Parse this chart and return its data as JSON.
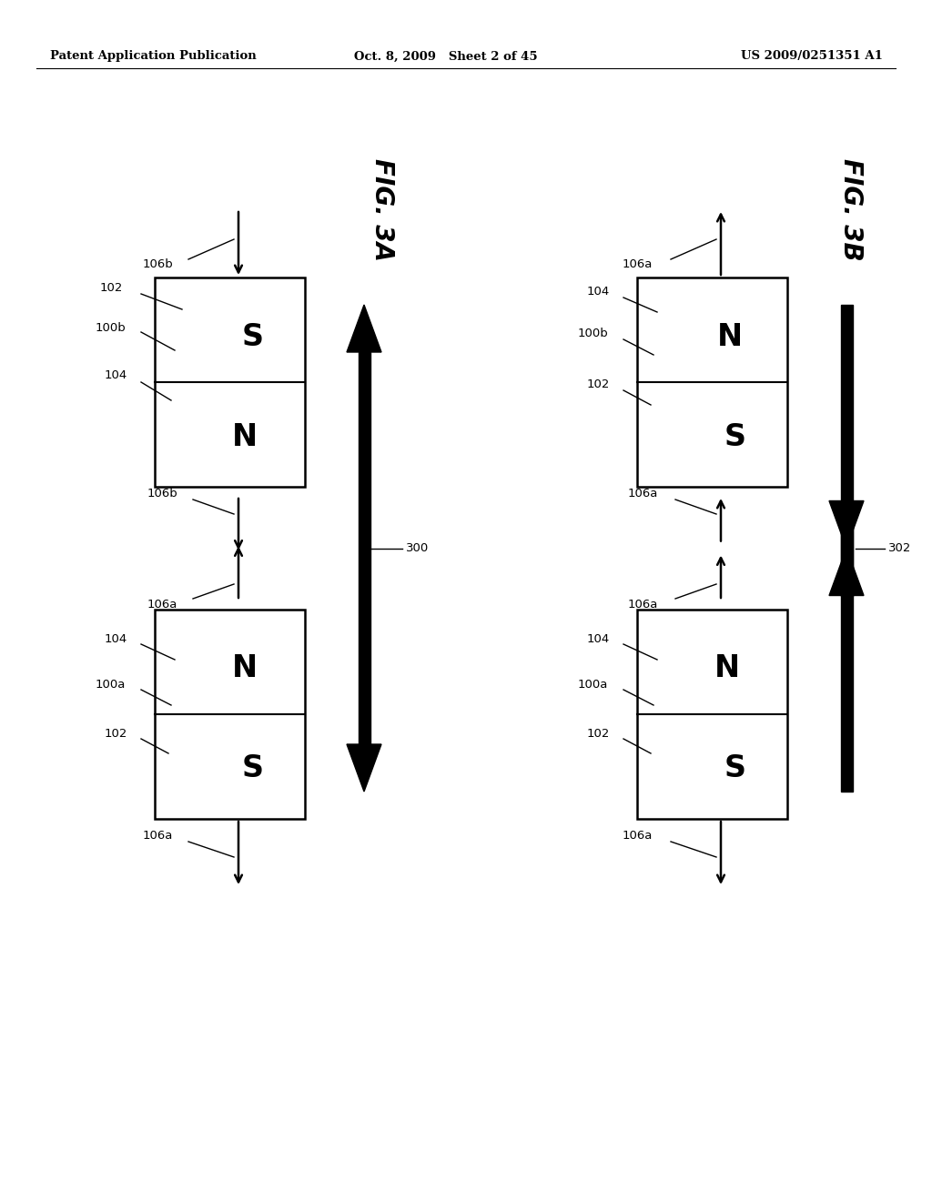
{
  "bg_color": "#ffffff",
  "header_left": "Patent Application Publication",
  "header_center": "Oct. 8, 2009   Sheet 2 of 45",
  "header_right": "US 2009/0251351 A1",
  "fig3a_title": "FIG. 3A",
  "fig3b_title": "FIG. 3B"
}
